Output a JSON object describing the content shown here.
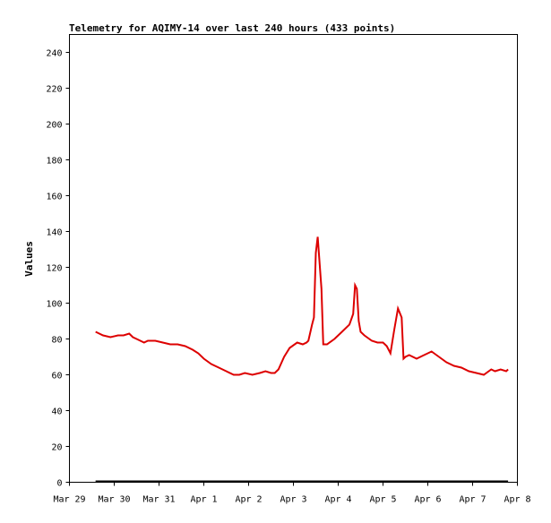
{
  "chart_data": {
    "type": "line",
    "title": "Telemetry for AQIMY-14 over last 240 hours (433 points)",
    "xlabel": "",
    "ylabel": "Values",
    "ylim": [
      0,
      250
    ],
    "yticks": [
      0,
      20,
      40,
      60,
      80,
      100,
      120,
      140,
      160,
      180,
      200,
      220,
      240
    ],
    "x_ticks": [
      "Mar 29",
      "Mar 30",
      "Mar 31",
      "Apr 1",
      "Apr 2",
      "Apr 3",
      "Apr 4",
      "Apr 5",
      "Apr 6",
      "Apr 7",
      "Apr 8"
    ],
    "grid": false,
    "line_color": "#dd0000",
    "baseline_color": "#000000",
    "series": [
      {
        "name": "",
        "x": [
          "2024-03-29 14:00",
          "2024-03-29 16:00",
          "2024-03-29 18:00",
          "2024-03-29 22:00",
          "2024-03-30 02:00",
          "2024-03-30 05:00",
          "2024-03-30 08:00",
          "2024-03-30 10:00",
          "2024-03-30 12:00",
          "2024-03-30 16:00",
          "2024-03-30 18:00",
          "2024-03-30 22:00",
          "2024-03-31 02:00",
          "2024-03-31 06:00",
          "2024-03-31 10:00",
          "2024-03-31 14:00",
          "2024-03-31 18:00",
          "2024-03-31 21:00",
          "2024-04-01 00:00",
          "2024-04-01 04:00",
          "2024-04-01 08:00",
          "2024-04-01 12:00",
          "2024-04-01 16:00",
          "2024-04-01 19:00",
          "2024-04-01 22:00",
          "2024-04-02 02:00",
          "2024-04-02 06:00",
          "2024-04-02 09:00",
          "2024-04-02 12:00",
          "2024-04-02 14:00",
          "2024-04-02 16:00",
          "2024-04-02 19:00",
          "2024-04-02 22:00",
          "2024-04-03 02:00",
          "2024-04-03 05:00",
          "2024-04-03 07:00",
          "2024-04-03 08:00",
          "2024-04-03 10:00",
          "2024-04-03 11:00",
          "2024-04-03 12:00",
          "2024-04-03 13:00",
          "2024-04-03 15:00",
          "2024-04-03 16:00",
          "2024-04-03 18:00",
          "2024-04-03 22:00",
          "2024-04-04 02:00",
          "2024-04-04 06:00",
          "2024-04-04 08:00",
          "2024-04-04 09:00",
          "2024-04-04 10:00",
          "2024-04-04 11:00",
          "2024-04-04 12:00",
          "2024-04-04 14:00",
          "2024-04-04 18:00",
          "2024-04-04 21:00",
          "2024-04-05 00:00",
          "2024-04-05 02:00",
          "2024-04-05 04:00",
          "2024-04-05 06:00",
          "2024-04-05 08:00",
          "2024-04-05 10:00",
          "2024-04-05 11:00",
          "2024-04-05 12:00",
          "2024-04-05 14:00",
          "2024-04-05 18:00",
          "2024-04-05 22:00",
          "2024-04-06 02:00",
          "2024-04-06 06:00",
          "2024-04-06 10:00",
          "2024-04-06 14:00",
          "2024-04-06 18:00",
          "2024-04-06 22:00",
          "2024-04-07 02:00",
          "2024-04-07 06:00",
          "2024-04-07 10:00",
          "2024-04-07 12:00",
          "2024-04-07 15:00",
          "2024-04-07 18:00",
          "2024-04-07 19:00"
        ],
        "values": [
          84,
          83,
          82,
          81,
          82,
          82,
          83,
          81,
          80,
          78,
          79,
          79,
          78,
          77,
          77,
          76,
          74,
          72,
          69,
          66,
          64,
          62,
          60,
          60,
          61,
          60,
          61,
          62,
          61,
          61,
          63,
          70,
          75,
          78,
          77,
          78,
          79,
          88,
          92,
          128,
          137,
          108,
          77,
          77,
          80,
          84,
          88,
          94,
          110,
          108,
          90,
          84,
          82,
          79,
          78,
          78,
          76,
          72,
          85,
          97,
          92,
          69,
          70,
          71,
          69,
          71,
          73,
          70,
          67,
          65,
          64,
          62,
          61,
          60,
          63,
          62,
          63,
          62,
          63
        ]
      }
    ]
  }
}
